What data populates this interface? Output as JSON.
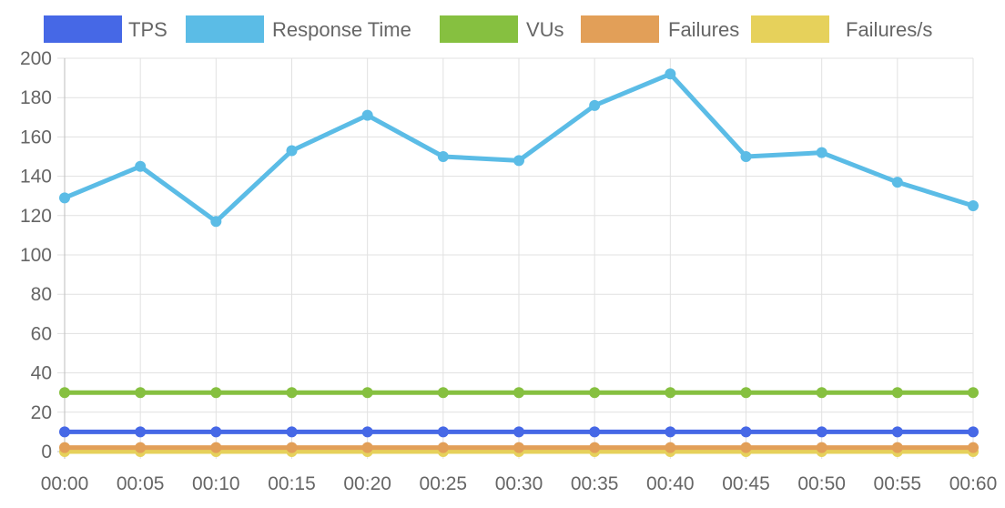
{
  "colors": {
    "tps": "#4668E6",
    "response_time": "#5BBCE6",
    "vus": "#86C040",
    "failures": "#E29F58",
    "failures_per_s": "#E6D15B",
    "grid": "#E1E1E1",
    "axis": "#BDBDBD",
    "text": "#666666"
  },
  "chart_data": {
    "type": "line",
    "categories": [
      "00:00",
      "00:05",
      "00:10",
      "00:15",
      "00:20",
      "00:25",
      "00:30",
      "00:35",
      "00:40",
      "00:45",
      "00:50",
      "00:55",
      "00:60"
    ],
    "series": [
      {
        "name": "TPS",
        "color": "#4668E6",
        "values": [
          10,
          10,
          10,
          10,
          10,
          10,
          10,
          10,
          10,
          10,
          10,
          10,
          10
        ]
      },
      {
        "name": "Response Time",
        "color": "#5BBCE6",
        "values": [
          129,
          145,
          117,
          153,
          171,
          150,
          148,
          176,
          192,
          150,
          152,
          137,
          125
        ]
      },
      {
        "name": "VUs",
        "color": "#86C040",
        "values": [
          30,
          30,
          30,
          30,
          30,
          30,
          30,
          30,
          30,
          30,
          30,
          30,
          30
        ]
      },
      {
        "name": "Failures",
        "color": "#E29F58",
        "values": [
          2,
          2,
          2,
          2,
          2,
          2,
          2,
          2,
          2,
          2,
          2,
          2,
          2
        ]
      },
      {
        "name": "Failures/s",
        "color": "#E6D15B",
        "values": [
          0,
          0,
          0,
          0,
          0,
          0,
          0,
          0,
          0,
          0,
          0,
          0,
          0
        ]
      }
    ],
    "yticks": [
      "0",
      "20",
      "40",
      "60",
      "80",
      "100",
      "120",
      "140",
      "160",
      "180",
      "200"
    ],
    "ylim": [
      0,
      200
    ],
    "grid": true,
    "legend_position": "top"
  }
}
